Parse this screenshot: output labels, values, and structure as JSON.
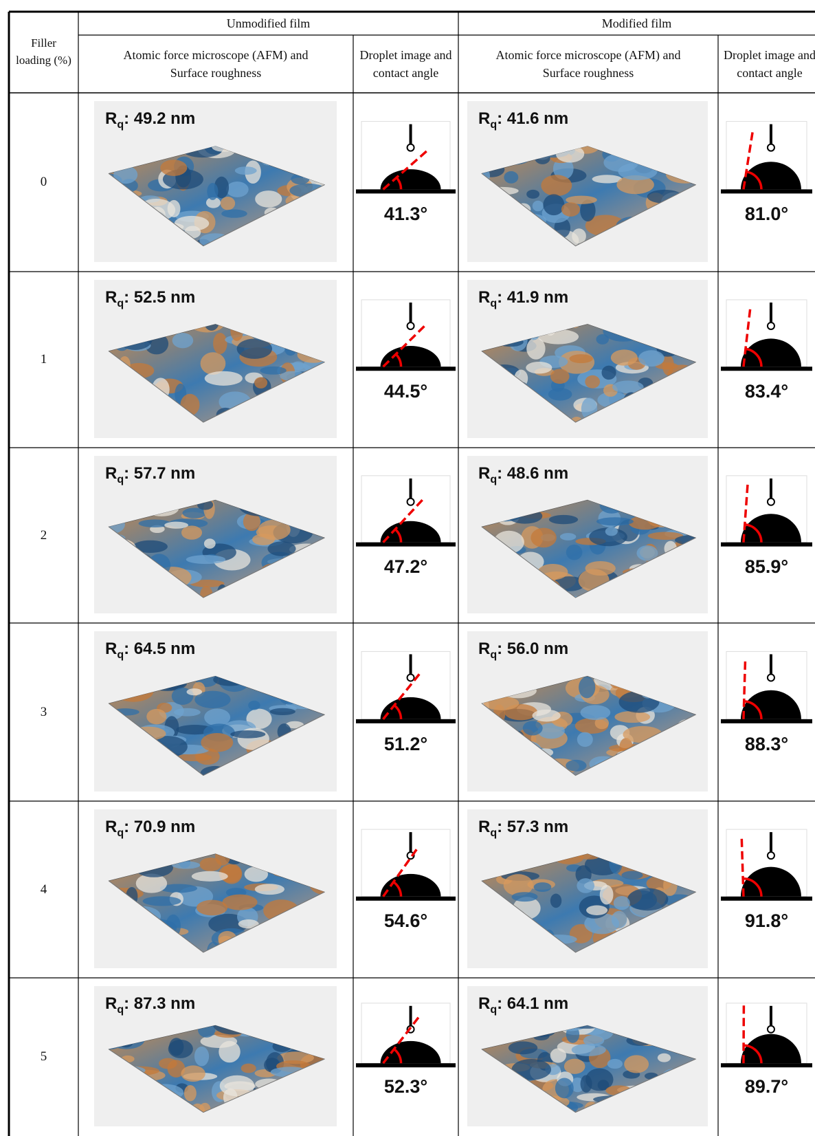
{
  "table": {
    "header": {
      "loading": "Filler loading (%)",
      "unmodified": "Unmodified film",
      "modified": "Modified film",
      "unmodified_afm": "Atomic force microscope (AFM) and Surface roughness",
      "unmodified_droplet": "Droplet image and contact angle",
      "modified_afm": "Atomic force microscope (AFM) and Surface roughness",
      "modified_droplet": "Droplet image and contact angle"
    },
    "rows": [
      {
        "loading": "0",
        "unmodified": {
          "rq": {
            "symbol": "R",
            "subscript": "q",
            "text": ": 49.2 nm"
          },
          "angle": "41.3°"
        },
        "modified": {
          "rq": {
            "symbol": "R",
            "subscript": "q",
            "text": ": 41.6 nm"
          },
          "angle": "81.0°"
        }
      },
      {
        "loading": "1",
        "unmodified": {
          "rq": {
            "symbol": "R",
            "subscript": "q",
            "text": ": 52.5 nm"
          },
          "angle": "44.5°"
        },
        "modified": {
          "rq": {
            "symbol": "R",
            "subscript": "q",
            "text": ": 41.9 nm"
          },
          "angle": "83.4°"
        }
      },
      {
        "loading": "2",
        "unmodified": {
          "rq": {
            "symbol": "R",
            "subscript": "q",
            "text": ": 57.7 nm"
          },
          "angle": "47.2°"
        },
        "modified": {
          "rq": {
            "symbol": "R",
            "subscript": "q",
            "text": ": 48.6 nm"
          },
          "angle": "85.9°"
        }
      },
      {
        "loading": "3",
        "unmodified": {
          "rq": {
            "symbol": "R",
            "subscript": "q",
            "text": ": 64.5 nm"
          },
          "angle": "51.2°"
        },
        "modified": {
          "rq": {
            "symbol": "R",
            "subscript": "q",
            "text": ": 56.0 nm"
          },
          "angle": "88.3°"
        }
      },
      {
        "loading": "4",
        "unmodified": {
          "rq": {
            "symbol": "R",
            "subscript": "q",
            "text": ": 70.9 nm"
          },
          "angle": "54.6°"
        },
        "modified": {
          "rq": {
            "symbol": "R",
            "subscript": "q",
            "text": ": 57.3 nm"
          },
          "angle": "91.8°"
        }
      },
      {
        "loading": "5",
        "unmodified": {
          "rq": {
            "symbol": "R",
            "subscript": "q",
            "text": ": 87.3 nm"
          },
          "angle": "52.3°"
        },
        "modified": {
          "rq": {
            "symbol": "R",
            "subscript": "q",
            "text": ": 64.1 nm"
          },
          "angle": "89.7°"
        }
      }
    ]
  }
}
